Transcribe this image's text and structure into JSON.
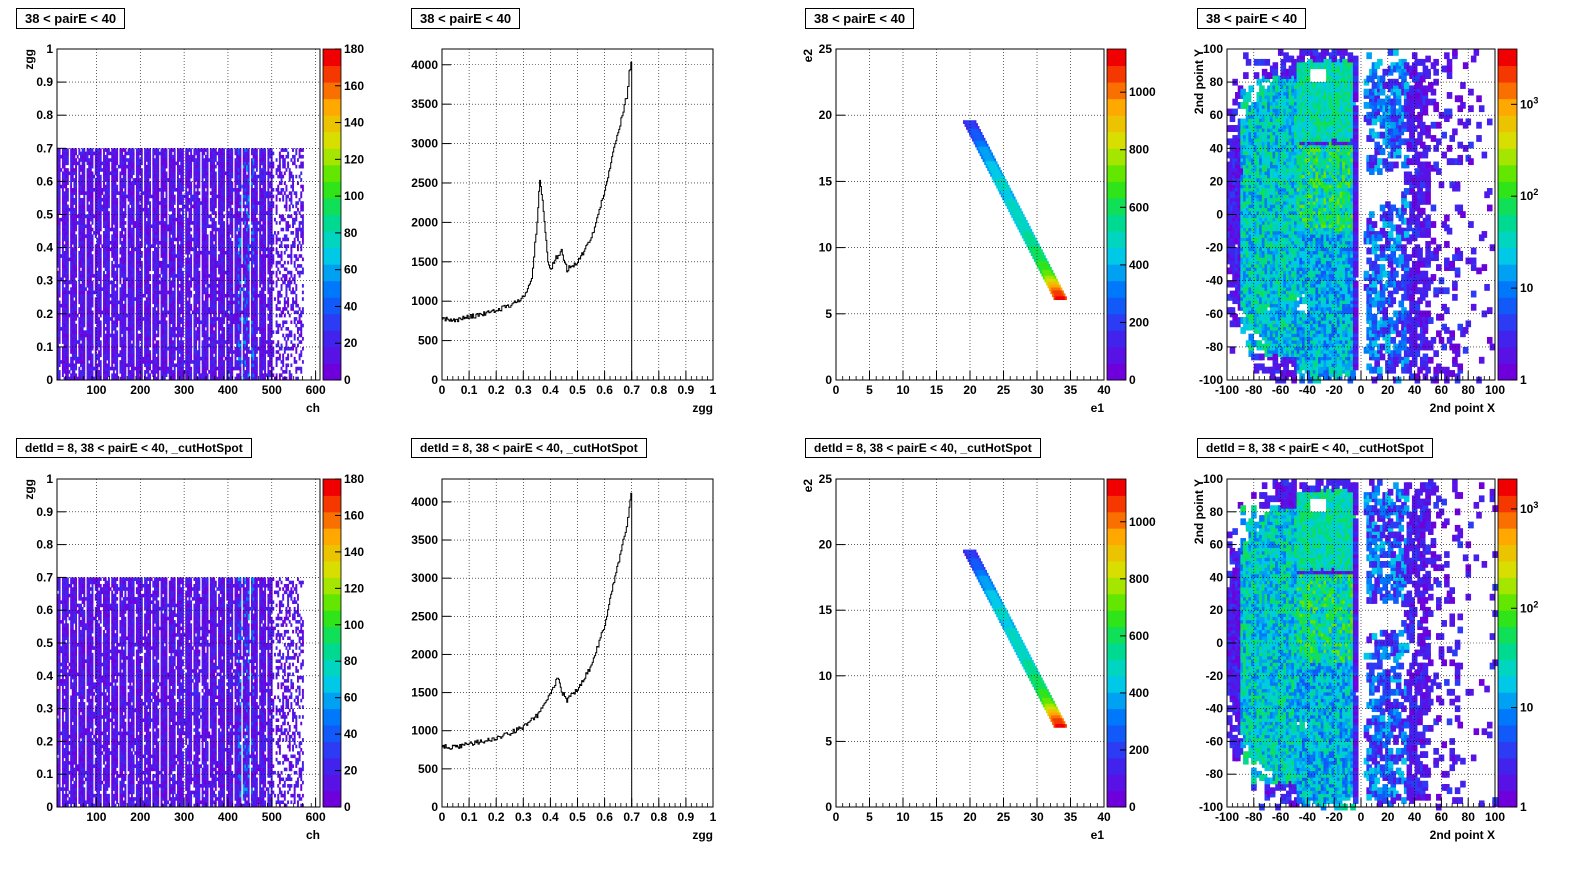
{
  "chart_data": [
    {
      "id": "p1",
      "type": "heatmap",
      "title": "38 < pairE < 40",
      "xlabel": "ch",
      "ylabel": "zgg",
      "xlim": [
        10,
        610
      ],
      "ylim": [
        0,
        1
      ],
      "xticks": [
        "100",
        "200",
        "300",
        "400",
        "500",
        "600"
      ],
      "yticks": [
        "0",
        "0.1",
        "0.2",
        "0.3",
        "0.4",
        "0.5",
        "0.6",
        "0.7",
        "0.8",
        "0.9",
        "1"
      ],
      "z_range": [
        0,
        180
      ],
      "z_ticks": [
        "0",
        "20",
        "40",
        "60",
        "80",
        "100",
        "120",
        "140",
        "160",
        "180"
      ],
      "filled_zgg_max": 0.7,
      "channels_end": 570,
      "grid": true
    },
    {
      "id": "p2",
      "type": "line",
      "title": "38 < pairE < 40",
      "xlabel": "zgg",
      "ylabel": "",
      "xlim": [
        0,
        1
      ],
      "ylim": [
        0,
        4200
      ],
      "xticks": [
        "0",
        "0.1",
        "0.2",
        "0.3",
        "0.4",
        "0.5",
        "0.6",
        "0.7",
        "0.8",
        "0.9",
        "1"
      ],
      "yticks": [
        "0",
        "500",
        "1000",
        "1500",
        "2000",
        "2500",
        "3000",
        "3500",
        "4000"
      ],
      "x": [
        0,
        0.05,
        0.1,
        0.15,
        0.2,
        0.25,
        0.3,
        0.33,
        0.35,
        0.36,
        0.37,
        0.38,
        0.39,
        0.4,
        0.42,
        0.44,
        0.46,
        0.5,
        0.55,
        0.6,
        0.63,
        0.66,
        0.68,
        0.69,
        0.7
      ],
      "y": [
        780,
        760,
        800,
        840,
        880,
        950,
        1050,
        1300,
        2000,
        2550,
        2300,
        1900,
        1500,
        1400,
        1550,
        1650,
        1400,
        1500,
        1800,
        2400,
        2900,
        3300,
        3600,
        3900,
        4100
      ],
      "grid": true
    },
    {
      "id": "p3",
      "type": "heatmap",
      "title": "38 < pairE < 40",
      "xlabel": "e1",
      "ylabel": "e2",
      "xlim": [
        0,
        40
      ],
      "ylim": [
        0,
        25
      ],
      "xticks": [
        "0",
        "5",
        "10",
        "15",
        "20",
        "25",
        "30",
        "35",
        "40"
      ],
      "yticks": [
        "0",
        "5",
        "10",
        "15",
        "20",
        "25"
      ],
      "z_range": [
        0,
        1150
      ],
      "z_ticks": [
        "0",
        "200",
        "400",
        "600",
        "800",
        "1000"
      ],
      "band": {
        "from": [
          19.8,
          19.5
        ],
        "to": [
          33.3,
          6.2
        ]
      },
      "grid": true
    },
    {
      "id": "p4",
      "type": "heatmap",
      "title": "38 < pairE < 40",
      "xlabel": "2nd point X",
      "ylabel": "2nd point Y",
      "xlim": [
        -100,
        100
      ],
      "ylim": [
        -100,
        100
      ],
      "xticks": [
        "-100",
        "-80",
        "-60",
        "-40",
        "-20",
        "0",
        "20",
        "40",
        "60",
        "80",
        "100"
      ],
      "yticks": [
        "-100",
        "-80",
        "-60",
        "-40",
        "-20",
        "0",
        "20",
        "40",
        "60",
        "80",
        "100"
      ],
      "z_scale": "log",
      "z_range": [
        1,
        4000
      ],
      "z_ticks": [
        "1",
        "10",
        "10^2",
        "10^3"
      ],
      "grid": true
    },
    {
      "id": "p5",
      "type": "heatmap",
      "title": "detId = 8, 38 < pairE < 40, _cutHotSpot",
      "xlabel": "ch",
      "ylabel": "zgg",
      "xlim": [
        10,
        610
      ],
      "ylim": [
        0,
        1
      ],
      "xticks": [
        "100",
        "200",
        "300",
        "400",
        "500",
        "600"
      ],
      "yticks": [
        "0",
        "0.1",
        "0.2",
        "0.3",
        "0.4",
        "0.5",
        "0.6",
        "0.7",
        "0.8",
        "0.9",
        "1"
      ],
      "z_range": [
        0,
        180
      ],
      "z_ticks": [
        "0",
        "20",
        "40",
        "60",
        "80",
        "100",
        "120",
        "140",
        "160",
        "180"
      ],
      "filled_zgg_max": 0.7,
      "channels_end": 570,
      "grid": true
    },
    {
      "id": "p6",
      "type": "line",
      "title": "detId = 8, 38 < pairE < 40, _cutHotSpot",
      "xlabel": "zgg",
      "ylabel": "",
      "xlim": [
        0,
        1
      ],
      "ylim": [
        0,
        4300
      ],
      "xticks": [
        "0",
        "0.1",
        "0.2",
        "0.3",
        "0.4",
        "0.5",
        "0.6",
        "0.7",
        "0.8",
        "0.9",
        "1"
      ],
      "yticks": [
        "0",
        "500",
        "1000",
        "1500",
        "2000",
        "2500",
        "3000",
        "3500",
        "4000"
      ],
      "x": [
        0,
        0.05,
        0.1,
        0.15,
        0.2,
        0.25,
        0.3,
        0.35,
        0.38,
        0.4,
        0.42,
        0.43,
        0.44,
        0.46,
        0.5,
        0.55,
        0.6,
        0.63,
        0.66,
        0.68,
        0.69,
        0.7
      ],
      "y": [
        790,
        780,
        830,
        860,
        900,
        970,
        1050,
        1200,
        1350,
        1500,
        1650,
        1700,
        1520,
        1400,
        1550,
        1850,
        2400,
        2900,
        3350,
        3700,
        3950,
        4150
      ],
      "grid": true
    },
    {
      "id": "p7",
      "type": "heatmap",
      "title": "detId = 8, 38 < pairE < 40, _cutHotSpot",
      "xlabel": "e1",
      "ylabel": "e2",
      "xlim": [
        0,
        40
      ],
      "ylim": [
        0,
        25
      ],
      "xticks": [
        "0",
        "5",
        "10",
        "15",
        "20",
        "25",
        "30",
        "35",
        "40"
      ],
      "yticks": [
        "0",
        "5",
        "10",
        "15",
        "20",
        "25"
      ],
      "z_range": [
        0,
        1150
      ],
      "z_ticks": [
        "0",
        "200",
        "400",
        "600",
        "800",
        "1000"
      ],
      "band": {
        "from": [
          19.8,
          19.5
        ],
        "to": [
          33.3,
          6.2
        ]
      },
      "grid": true
    },
    {
      "id": "p8",
      "type": "heatmap",
      "title": "detId = 8, 38 < pairE < 40, _cutHotSpot",
      "xlabel": "2nd point X",
      "ylabel": "2nd point Y",
      "xlim": [
        -100,
        100
      ],
      "ylim": [
        -100,
        100
      ],
      "xticks": [
        "-100",
        "-80",
        "-60",
        "-40",
        "-20",
        "0",
        "20",
        "40",
        "60",
        "80",
        "100"
      ],
      "yticks": [
        "-100",
        "-80",
        "-60",
        "-40",
        "-20",
        "0",
        "20",
        "40",
        "60",
        "80",
        "100"
      ],
      "z_scale": "log",
      "z_range": [
        1,
        2000
      ],
      "z_ticks": [
        "1",
        "10",
        "10^2",
        "10^3"
      ],
      "grid": true
    }
  ]
}
